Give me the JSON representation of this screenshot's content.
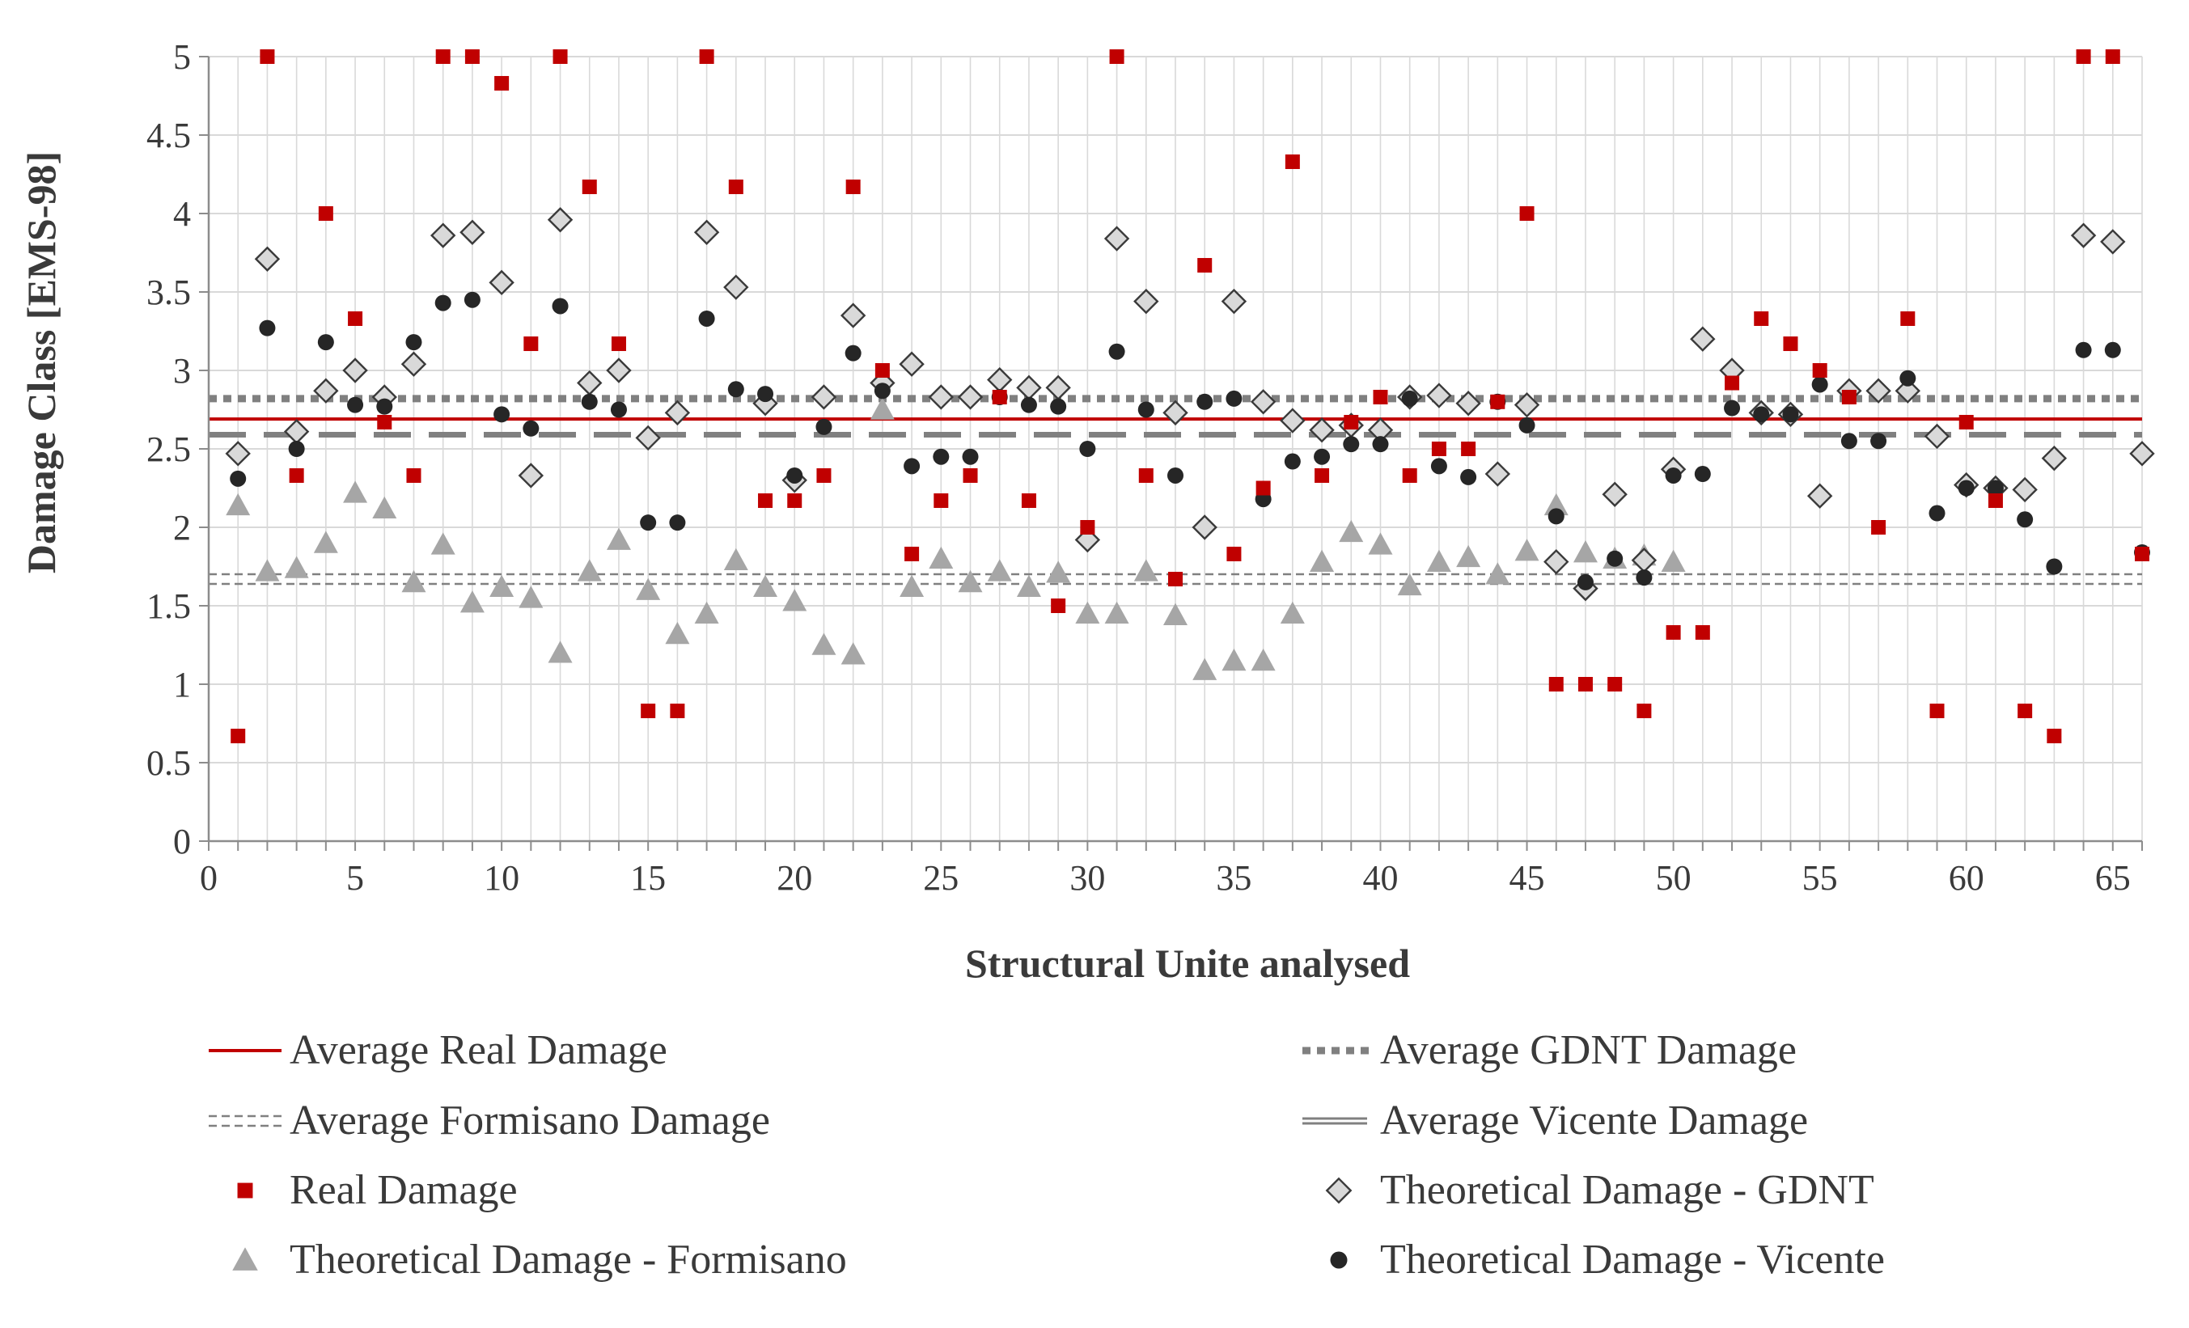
{
  "chart_data": {
    "type": "scatter",
    "title": "",
    "xlabel": "Structural Unite analysed",
    "ylabel": "Damage Class  [EMS-98]",
    "xlim": [
      0,
      66
    ],
    "ylim": [
      0,
      5
    ],
    "x_ticks": [
      "0",
      "5",
      "10",
      "15",
      "20",
      "25",
      "30",
      "35",
      "40",
      "45",
      "50",
      "55",
      "60",
      "65"
    ],
    "y_ticks": [
      "0",
      "0.5",
      "1",
      "1.5",
      "2",
      "2.5",
      "3",
      "3.5",
      "4",
      "4.5",
      "5"
    ],
    "grid": true,
    "legend_position": "bottom",
    "colors": {
      "real": "#c00000",
      "gdnt": "#808080",
      "formisano": "#a6a6a6",
      "vicente": "#262626",
      "grid": "#d9d9d9"
    },
    "averages": [
      {
        "name": "Average Real Damage",
        "value": 2.69,
        "style": "solid-red"
      },
      {
        "name": "Average GDNT Damage",
        "value": 2.82,
        "style": "dotted-thick"
      },
      {
        "name": "Average Formisano Damage",
        "value": 1.67,
        "style": "double-dashed"
      },
      {
        "name": "Average Vicente Damage",
        "value": 2.59,
        "style": "long-dash"
      }
    ],
    "series": [
      {
        "name": "Real Damage",
        "marker": "square",
        "x": [
          1,
          2,
          3,
          4,
          5,
          6,
          7,
          8,
          9,
          10,
          11,
          12,
          13,
          14,
          15,
          16,
          17,
          18,
          19,
          20,
          21,
          22,
          23,
          24,
          25,
          26,
          27,
          28,
          29,
          30,
          31,
          32,
          33,
          34,
          35,
          36,
          37,
          38,
          39,
          40,
          41,
          42,
          43,
          44,
          45,
          46,
          47,
          48,
          49,
          50,
          51,
          52,
          53,
          54,
          55,
          56,
          57,
          58,
          59,
          60,
          61,
          62,
          63,
          64,
          65,
          66
        ],
        "values": [
          0.67,
          5,
          2.33,
          4,
          3.33,
          2.67,
          2.33,
          5,
          5,
          4.83,
          3.17,
          5,
          4.17,
          3.17,
          0.83,
          0.83,
          5,
          4.17,
          2.17,
          2.17,
          2.33,
          4.17,
          3,
          1.83,
          2.17,
          2.33,
          2.83,
          2.17,
          1.5,
          2,
          5,
          2.33,
          1.67,
          3.67,
          1.83,
          2.25,
          4.33,
          2.33,
          2.67,
          2.83,
          2.33,
          2.5,
          2.5,
          2.8,
          4,
          1,
          1,
          1,
          0.83,
          1.33,
          1.33,
          2.92,
          3.33,
          3.17,
          3,
          2.83,
          2,
          3.33,
          0.83,
          2.67,
          2.17,
          0.83,
          0.67,
          5,
          5,
          1.83
        ]
      },
      {
        "name": "Theoretical Damage - GDNT",
        "marker": "diamond",
        "x": [
          1,
          2,
          3,
          4,
          5,
          6,
          7,
          8,
          9,
          10,
          11,
          12,
          13,
          14,
          15,
          16,
          17,
          18,
          19,
          20,
          21,
          22,
          23,
          24,
          25,
          26,
          27,
          28,
          29,
          30,
          31,
          32,
          33,
          34,
          35,
          36,
          37,
          38,
          39,
          40,
          41,
          42,
          43,
          44,
          45,
          46,
          47,
          48,
          49,
          50,
          51,
          52,
          53,
          54,
          55,
          56,
          57,
          58,
          59,
          60,
          61,
          62,
          63,
          64,
          65,
          66
        ],
        "values": [
          2.47,
          3.71,
          2.61,
          2.87,
          3,
          2.83,
          3.04,
          3.86,
          3.88,
          3.56,
          2.33,
          3.96,
          2.92,
          3,
          2.57,
          2.73,
          3.88,
          3.53,
          2.79,
          2.3,
          2.83,
          3.35,
          2.92,
          3.04,
          2.83,
          2.83,
          2.94,
          2.89,
          2.89,
          1.92,
          3.84,
          3.44,
          2.73,
          2,
          3.44,
          2.8,
          2.68,
          2.62,
          2.65,
          2.62,
          2.83,
          2.84,
          2.79,
          2.34,
          2.78,
          1.78,
          1.61,
          2.21,
          1.79,
          2.37,
          3.2,
          3,
          2.73,
          2.72,
          2.2,
          2.87,
          2.87,
          2.87,
          2.58,
          2.27,
          2.25,
          2.24,
          2.44,
          3.86,
          3.82,
          2.47
        ]
      },
      {
        "name": "Theoretical Damage - Formisano",
        "marker": "triangle",
        "x": [
          1,
          2,
          3,
          4,
          5,
          6,
          7,
          8,
          9,
          10,
          11,
          12,
          13,
          14,
          15,
          16,
          17,
          18,
          19,
          20,
          21,
          22,
          23,
          24,
          25,
          26,
          27,
          28,
          29,
          30,
          31,
          32,
          33,
          34,
          35,
          36,
          37,
          38,
          39,
          40,
          41,
          42,
          43,
          44,
          45,
          46,
          47,
          48,
          49,
          50
        ],
        "values": [
          2.14,
          1.72,
          1.74,
          1.9,
          2.22,
          2.12,
          1.65,
          1.89,
          1.52,
          1.62,
          1.55,
          1.2,
          1.72,
          1.92,
          1.6,
          1.32,
          1.45,
          1.79,
          1.62,
          1.53,
          1.25,
          1.19,
          2.75,
          1.62,
          1.8,
          1.65,
          1.72,
          1.62,
          1.71,
          1.45,
          1.45,
          1.72,
          1.44,
          1.09,
          1.15,
          1.15,
          1.45,
          1.78,
          1.97,
          1.89,
          1.63,
          1.78,
          1.81,
          1.7,
          1.85,
          2.14,
          1.84,
          1.8,
          1.82,
          1.78
        ]
      },
      {
        "name": "Theoretical Damage - Vicente",
        "marker": "circle",
        "x": [
          1,
          2,
          3,
          4,
          5,
          6,
          7,
          8,
          9,
          10,
          11,
          12,
          13,
          14,
          15,
          16,
          17,
          18,
          19,
          20,
          21,
          22,
          23,
          24,
          25,
          26,
          27,
          28,
          29,
          30,
          31,
          32,
          33,
          34,
          35,
          36,
          37,
          38,
          39,
          40,
          41,
          42,
          43,
          44,
          45,
          46,
          47,
          48,
          49,
          50,
          51,
          52,
          53,
          54,
          55,
          56,
          57,
          58,
          59,
          60,
          61,
          62,
          63,
          64,
          65,
          66
        ],
        "values": [
          2.31,
          3.27,
          2.5,
          3.18,
          2.78,
          2.77,
          3.18,
          3.43,
          3.45,
          2.72,
          2.63,
          3.41,
          2.8,
          2.75,
          2.03,
          2.03,
          3.33,
          2.88,
          2.85,
          2.33,
          2.64,
          3.11,
          2.87,
          2.39,
          2.45,
          2.45,
          2.83,
          2.78,
          2.77,
          2.5,
          3.12,
          2.75,
          2.33,
          2.8,
          2.82,
          2.18,
          2.42,
          2.45,
          2.53,
          2.53,
          2.82,
          2.39,
          2.32,
          2.8,
          2.65,
          2.07,
          1.65,
          1.8,
          1.68,
          2.33,
          2.34,
          2.76,
          2.72,
          2.72,
          2.91,
          2.55,
          2.55,
          2.95,
          2.09,
          2.25,
          2.25,
          2.05,
          1.75,
          3.13,
          3.13,
          1.84
        ]
      }
    ]
  },
  "legend": [
    {
      "label": "Average Real Damage",
      "kind": "line-red"
    },
    {
      "label": "Average GDNT Damage",
      "kind": "line-dotted"
    },
    {
      "label": "Average Formisano Damage",
      "kind": "line-double-dash"
    },
    {
      "label": "Average Vicente Damage",
      "kind": "line-double-solid"
    },
    {
      "label": "Real Damage",
      "kind": "square"
    },
    {
      "label": "Theoretical Damage - GDNT",
      "kind": "diamond"
    },
    {
      "label": "Theoretical Damage - Formisano",
      "kind": "triangle"
    },
    {
      "label": "Theoretical Damage - Vicente",
      "kind": "circle"
    }
  ]
}
